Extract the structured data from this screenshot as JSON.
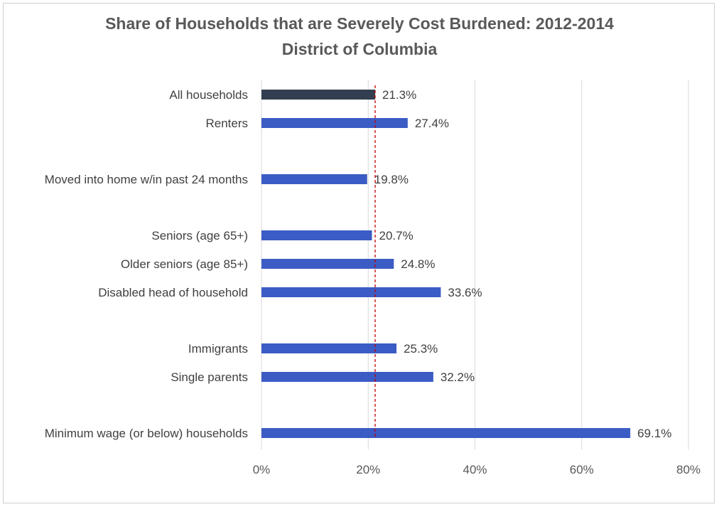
{
  "chart_data": {
    "type": "bar",
    "orientation": "horizontal",
    "title": "Share of Households  that are Severely Cost Burdened:  2012-2014",
    "subtitle": "District of Columbia",
    "categories": [
      "All households",
      "Renters",
      "Moved into home w/in past 24 months",
      "Seniors (age 65+)",
      "Older seniors (age 85+)",
      "Disabled head of household",
      "Immigrants",
      "Single parents",
      "Minimum wage (or below) households"
    ],
    "values": [
      21.3,
      27.4,
      19.8,
      20.7,
      24.8,
      33.6,
      25.3,
      32.2,
      69.1
    ],
    "value_labels": [
      "21.3%",
      "27.4%",
      "19.8%",
      "20.7%",
      "24.8%",
      "33.6%",
      "25.3%",
      "32.2%",
      "69.1%"
    ],
    "xlim": [
      0,
      80
    ],
    "x_ticks": [
      0,
      20,
      40,
      60,
      80
    ],
    "x_tick_labels": [
      "0%",
      "20%",
      "40%",
      "60%",
      "80%"
    ],
    "reference_line": {
      "value": 21.3,
      "style": "dashed",
      "color": "#c00000"
    },
    "colors": {
      "highlight": "#333f50",
      "bar": "#3b5cc4",
      "grid": "#d9d9d9"
    },
    "grid": true,
    "legend": "none"
  }
}
